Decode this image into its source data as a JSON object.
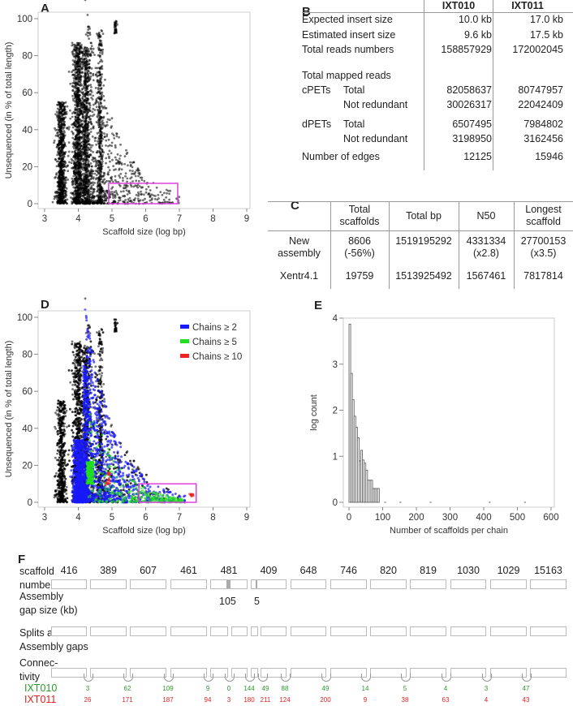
{
  "panels": {
    "a": "A",
    "b": "B",
    "c": "C",
    "d": "D",
    "e": "E",
    "f": "F"
  },
  "chart_data": [
    {
      "id": "A",
      "type": "scatter",
      "xlabel": "Scaffold size (log bp)",
      "ylabel": "Unsequenced (in % of total length)",
      "xlim": [
        3,
        9
      ],
      "ylim": [
        0,
        100
      ],
      "xticks": [
        3,
        4,
        5,
        6,
        7,
        8,
        9
      ],
      "yticks": [
        0,
        20,
        40,
        60,
        80,
        100
      ],
      "point_color": "#000000",
      "highlight_box": {
        "x": [
          4.9,
          6.95
        ],
        "y": [
          0,
          11
        ],
        "color": "#e040e0"
      },
      "grid": false
    },
    {
      "id": "D",
      "type": "scatter",
      "xlabel": "Scaffold size (log bp)",
      "ylabel": "Unsequenced (in % of total length)",
      "xlim": [
        3,
        9
      ],
      "ylim": [
        0,
        100
      ],
      "xticks": [
        3,
        4,
        5,
        6,
        7,
        8,
        9
      ],
      "yticks": [
        0,
        20,
        40,
        60,
        80,
        100
      ],
      "series": [
        {
          "name": "Chains ≥ 2",
          "color": "#1a1aff"
        },
        {
          "name": "Chains ≥ 5",
          "color": "#22dd22"
        },
        {
          "name": "Chains ≥ 10",
          "color": "#ee2222"
        }
      ],
      "legend": "top-right",
      "highlight_box": {
        "x": [
          5.8,
          7.5
        ],
        "y": [
          0,
          10
        ],
        "color": "#e040e0"
      },
      "grid": false
    },
    {
      "id": "E",
      "type": "bar",
      "xlabel": "Number of scaffolds per chain",
      "ylabel": "log count",
      "xlim": [
        0,
        600
      ],
      "ylim": [
        0,
        4
      ],
      "xticks": [
        0,
        100,
        200,
        300,
        400,
        500,
        600
      ],
      "yticks": [
        0,
        1,
        2,
        3,
        4
      ],
      "bin_width": 5,
      "bins": [
        0,
        5,
        10,
        15,
        20,
        25,
        30,
        35,
        40,
        45,
        50,
        55,
        60,
        65,
        70,
        75,
        80,
        85
      ],
      "values": [
        3.87,
        2.8,
        2.23,
        1.87,
        1.63,
        1.4,
        0.9,
        1.13,
        0.92,
        0.85,
        0.7,
        0.48,
        0.48,
        0.48,
        0.3,
        0.3,
        0.3,
        0.3
      ],
      "zero_bins": [
        105,
        150,
        240,
        415,
        520
      ],
      "grid": false
    }
  ],
  "table_b": {
    "columns": [
      "IXT010",
      "IXT011"
    ],
    "rows": [
      {
        "label": "Expected insert size",
        "sub": "",
        "v": [
          "10.0 kb",
          "17.0 kb"
        ]
      },
      {
        "label": "Estimated insert size",
        "sub": "",
        "v": [
          "9.6 kb",
          "17.5 kb"
        ]
      },
      {
        "label": "Total reads numbers",
        "sub": "",
        "v": [
          "158857929",
          "172002045"
        ]
      },
      {
        "label": "Total mapped reads",
        "sub": "",
        "v": [
          "",
          ""
        ]
      },
      {
        "label": "cPETs",
        "sub": "Total",
        "v": [
          "82058637",
          "80747957"
        ]
      },
      {
        "label": "",
        "sub": "Not redundant",
        "v": [
          "30026317",
          "22042409"
        ]
      },
      {
        "label": "dPETs",
        "sub": "Total",
        "v": [
          "6507495",
          "7984802"
        ]
      },
      {
        "label": "",
        "sub": "Not redundant",
        "v": [
          "3198950",
          "3162456"
        ]
      },
      {
        "label": "Number of edges",
        "sub": "",
        "v": [
          "12125",
          "15946"
        ]
      }
    ]
  },
  "table_c": {
    "headers": [
      [
        "Total",
        "scaffolds"
      ],
      [
        "Total bp"
      ],
      [
        "N50"
      ],
      [
        "Longest",
        "scaffold"
      ]
    ],
    "rows": [
      {
        "label": [
          "New",
          "assembly"
        ],
        "v": [
          [
            "8606",
            "(-56%)"
          ],
          [
            "1519195292"
          ],
          [
            "4331334",
            "(x2.8)"
          ],
          [
            "27700153",
            "(x3.5)"
          ]
        ]
      },
      {
        "label": [
          "Xentr4.1"
        ],
        "v": [
          [
            "19759"
          ],
          [
            "1513925492"
          ],
          [
            "1567461"
          ],
          [
            "7817814"
          ]
        ]
      }
    ]
  },
  "panel_f": {
    "row_labels": {
      "scaffold": [
        "scaffold",
        "number"
      ],
      "gap": [
        "Assembly",
        "gap size (kb)"
      ],
      "splits": [
        "Splits at",
        "Assembly gaps"
      ],
      "connectivity": [
        "Connec-",
        "tivity"
      ]
    },
    "scaffolds": [
      "416",
      "389",
      "607",
      "461",
      "481",
      "409",
      "648",
      "746",
      "820",
      "819",
      "1030",
      "1029",
      "15163"
    ],
    "gaps": [
      {
        "scaffold": "481",
        "size": "105"
      },
      {
        "scaffold": "409",
        "size": "5"
      }
    ],
    "libraries": [
      {
        "name": "IXT010",
        "color": "#2a9a2a",
        "values": [
          "3",
          "62",
          "109",
          "9",
          "0",
          "144",
          "49",
          "88",
          "49",
          "14",
          "5",
          "4",
          "3",
          "47"
        ]
      },
      {
        "name": "IXT011",
        "color": "#e02020",
        "values": [
          "26",
          "171",
          "187",
          "94",
          "3",
          "180",
          "211",
          "124",
          "200",
          "9",
          "38",
          "63",
          "4",
          "43"
        ]
      }
    ]
  }
}
